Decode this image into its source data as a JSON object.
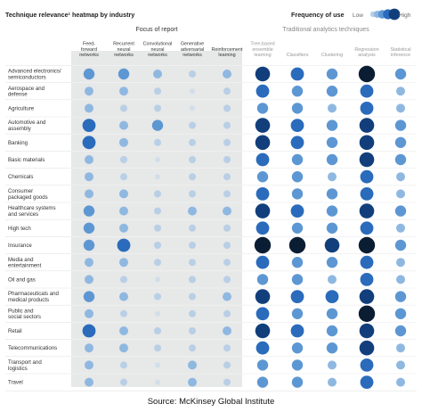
{
  "chart_data": {
    "type": "heatmap",
    "title": "Technique relevance¹ heatmap by industry",
    "legend": {
      "title": "Frequency of use",
      "low": "Low",
      "high": "High",
      "placement": "top-right"
    },
    "groups": [
      {
        "label": "Focus of report",
        "columns": [
          0,
          1,
          2,
          3,
          4
        ]
      },
      {
        "label": "Traditional analytics techniques",
        "columns": [
          5,
          6,
          7,
          8,
          9
        ]
      }
    ],
    "columns": [
      [
        "Feed-",
        "forward",
        "networks"
      ],
      [
        "Recurrent",
        "neural",
        "networks"
      ],
      [
        "Convolutional",
        "neural",
        "networks"
      ],
      [
        "Generative",
        "adversarial",
        "networks"
      ],
      [
        "Reinforcement",
        "learning"
      ],
      [
        "Tree-based",
        "ensemble",
        "learning"
      ],
      [
        "Classifiers"
      ],
      [
        "Clustering"
      ],
      [
        "Regression",
        "analysis"
      ],
      [
        "Statistical",
        "inference"
      ]
    ],
    "rows": [
      [
        "Advanced electronics/",
        "semiconductors"
      ],
      [
        "Aerospace and",
        "defense"
      ],
      [
        "Agriculture"
      ],
      [
        "Automotive and",
        "assembly"
      ],
      [
        "Banking"
      ],
      [
        "Basic materials"
      ],
      [
        "Chemicals"
      ],
      [
        "Consumer",
        "packaged goods"
      ],
      [
        "Healthcare systems",
        "and services"
      ],
      [
        "High tech"
      ],
      [
        "Insurance"
      ],
      [
        "Media and",
        "entertainment"
      ],
      [
        "Oil and gas"
      ],
      [
        "Pharmaceuticals and",
        "medical products"
      ],
      [
        "Public and",
        "social sectors"
      ],
      [
        "Retail"
      ],
      [
        "Telecommunications"
      ],
      [
        "Transport and",
        "logistics"
      ],
      [
        "Travel"
      ]
    ],
    "scale": [
      1,
      6
    ],
    "values": [
      [
        3,
        3,
        2,
        1,
        2,
        5,
        4,
        3,
        6,
        3
      ],
      [
        2,
        2,
        1,
        0,
        1,
        4,
        3,
        3,
        4,
        2
      ],
      [
        2,
        1,
        1,
        0,
        1,
        3,
        3,
        2,
        4,
        2
      ],
      [
        4,
        2,
        3,
        1,
        1,
        5,
        4,
        3,
        5,
        3
      ],
      [
        4,
        2,
        1,
        1,
        1,
        5,
        4,
        3,
        5,
        3
      ],
      [
        2,
        1,
        0,
        1,
        1,
        4,
        3,
        3,
        5,
        3
      ],
      [
        2,
        1,
        0,
        1,
        1,
        3,
        3,
        2,
        4,
        2
      ],
      [
        2,
        2,
        1,
        1,
        1,
        4,
        3,
        3,
        4,
        2
      ],
      [
        3,
        2,
        1,
        2,
        2,
        5,
        4,
        3,
        5,
        3
      ],
      [
        3,
        2,
        1,
        1,
        1,
        4,
        3,
        3,
        4,
        2
      ],
      [
        3,
        4,
        1,
        1,
        1,
        6,
        6,
        5,
        6,
        3
      ],
      [
        2,
        2,
        1,
        1,
        1,
        4,
        3,
        3,
        4,
        2
      ],
      [
        2,
        1,
        0,
        1,
        1,
        3,
        3,
        2,
        4,
        2
      ],
      [
        3,
        2,
        1,
        1,
        2,
        5,
        4,
        4,
        5,
        3
      ],
      [
        2,
        1,
        0,
        1,
        1,
        4,
        3,
        3,
        6,
        3
      ],
      [
        4,
        2,
        1,
        1,
        2,
        5,
        4,
        3,
        5,
        3
      ],
      [
        2,
        2,
        1,
        1,
        1,
        4,
        3,
        3,
        5,
        2
      ],
      [
        2,
        1,
        0,
        2,
        1,
        3,
        3,
        2,
        4,
        2
      ],
      [
        2,
        1,
        0,
        2,
        1,
        3,
        3,
        2,
        4,
        2
      ]
    ]
  },
  "source": "Source: McKinsey Global Institute",
  "colors": {
    "shade": "#e7e8e8",
    "dot_levels": [
      "#d2dee9",
      "#b8cfe6",
      "#8fb8e1",
      "#5d97d3",
      "#2a6bbc",
      "#123f7c",
      "#0a1d33"
    ]
  }
}
